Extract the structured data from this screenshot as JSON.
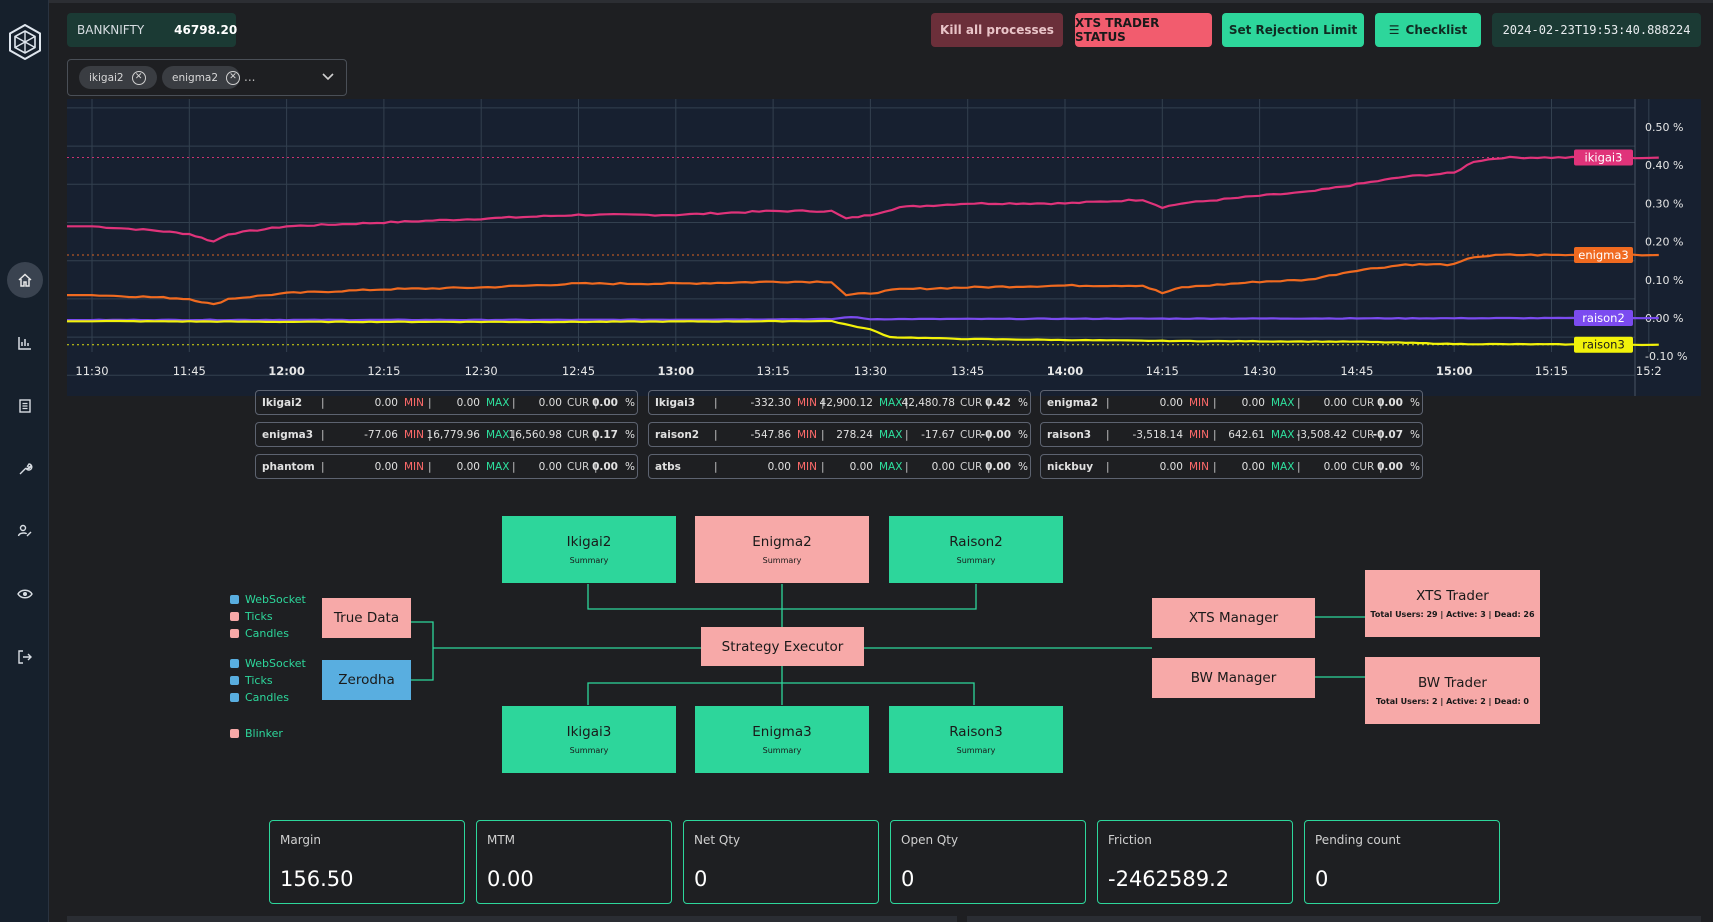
{
  "header": {
    "ticker_symbol": "BANKNIFTY",
    "ticker_value": "46798.20",
    "kill_label": "Kill all processes",
    "status_label": "XTS TRADER STATUS",
    "rejection_label": "Set Rejection Limit",
    "checklist_label": "Checklist",
    "timestamp": "2024-02-23T19:53:40.888224"
  },
  "filter": {
    "chips": [
      "ikigai2",
      "enigma2"
    ],
    "more": "..."
  },
  "chart_data": {
    "type": "line",
    "x": [
      "11:30",
      "11:45",
      "12:00",
      "12:15",
      "12:30",
      "12:45",
      "13:00",
      "13:15",
      "13:30",
      "13:45",
      "14:00",
      "14:15",
      "14:30",
      "14:45",
      "15:00",
      "15:15",
      "15:2"
    ],
    "x_bold": [
      "12:00",
      "13:00",
      "14:00",
      "15:00"
    ],
    "y_ticks": [
      "0.50 %",
      "0.40 %",
      "0.30 %",
      "0.20 %",
      "0.10 %",
      "0.00 %",
      "-0.10 %"
    ],
    "ylim": [
      -0.12,
      0.52
    ],
    "grid": true,
    "series": [
      {
        "name": "ikigai3",
        "color": "#e0337a",
        "end_label": "ikigai3",
        "points": [
          [
            0,
            0.24
          ],
          [
            0.6,
            0.23
          ],
          [
            1.0,
            0.22
          ],
          [
            1.25,
            0.2
          ],
          [
            1.4,
            0.22
          ],
          [
            2,
            0.24
          ],
          [
            3,
            0.25
          ],
          [
            4,
            0.26
          ],
          [
            5,
            0.27
          ],
          [
            6,
            0.27
          ],
          [
            7,
            0.28
          ],
          [
            7.6,
            0.28
          ],
          [
            7.75,
            0.26
          ],
          [
            8,
            0.27
          ],
          [
            8.3,
            0.29
          ],
          [
            9,
            0.3
          ],
          [
            10,
            0.3
          ],
          [
            10.8,
            0.31
          ],
          [
            11,
            0.29
          ],
          [
            11.2,
            0.3
          ],
          [
            12,
            0.32
          ],
          [
            12.5,
            0.33
          ],
          [
            13,
            0.35
          ],
          [
            13.5,
            0.37
          ],
          [
            14,
            0.38
          ],
          [
            14.2,
            0.41
          ],
          [
            14.5,
            0.42
          ],
          [
            15,
            0.42
          ],
          [
            16,
            0.42
          ]
        ]
      },
      {
        "name": "enigma3",
        "color": "#f06a20",
        "end_label": "enigma3",
        "points": [
          [
            0,
            0.06
          ],
          [
            0.6,
            0.055
          ],
          [
            1.0,
            0.05
          ],
          [
            1.25,
            0.035
          ],
          [
            1.4,
            0.05
          ],
          [
            2,
            0.065
          ],
          [
            3,
            0.075
          ],
          [
            4,
            0.08
          ],
          [
            5,
            0.09
          ],
          [
            6,
            0.09
          ],
          [
            7,
            0.095
          ],
          [
            7.6,
            0.095
          ],
          [
            7.75,
            0.06
          ],
          [
            8,
            0.065
          ],
          [
            8.3,
            0.075
          ],
          [
            9,
            0.08
          ],
          [
            10,
            0.085
          ],
          [
            10.8,
            0.085
          ],
          [
            11,
            0.065
          ],
          [
            11.2,
            0.08
          ],
          [
            12,
            0.095
          ],
          [
            12.5,
            0.1
          ],
          [
            13,
            0.125
          ],
          [
            13.5,
            0.14
          ],
          [
            14,
            0.14
          ],
          [
            14.2,
            0.16
          ],
          [
            14.5,
            0.165
          ],
          [
            15,
            0.165
          ],
          [
            16,
            0.165
          ]
        ]
      },
      {
        "name": "raison2",
        "color": "#7b4bf0",
        "end_label": "raison2",
        "points": [
          [
            0,
            -0.005
          ],
          [
            5,
            -0.005
          ],
          [
            7.6,
            -0.003
          ],
          [
            7.8,
            0.003
          ],
          [
            8,
            -0.003
          ],
          [
            10,
            -0.002
          ],
          [
            16,
            0.0
          ]
        ]
      },
      {
        "name": "raison3",
        "color": "#f2f20a",
        "end_label": "raison3",
        "points": [
          [
            0,
            -0.008
          ],
          [
            2,
            -0.01
          ],
          [
            5,
            -0.01
          ],
          [
            7.6,
            -0.008
          ],
          [
            7.8,
            -0.02
          ],
          [
            8,
            -0.03
          ],
          [
            8.2,
            -0.05
          ],
          [
            9,
            -0.055
          ],
          [
            11,
            -0.06
          ],
          [
            13,
            -0.062
          ],
          [
            14,
            -0.068
          ],
          [
            16,
            -0.07
          ]
        ]
      }
    ],
    "ref_lines": [
      {
        "y": 0.42,
        "color": "#e0337a"
      },
      {
        "y": 0.165,
        "color": "#f06a20"
      },
      {
        "y": -0.07,
        "color": "#f2f20a"
      }
    ]
  },
  "stats": [
    {
      "name": "Ikigai2",
      "min": "0.00",
      "max": "0.00",
      "cur": "0.00",
      "pct": "0.00"
    },
    {
      "name": "Ikigai3",
      "min": "-332.30",
      "max": "42,900.12",
      "cur": "42,480.78",
      "pct": "0.42"
    },
    {
      "name": "enigma2",
      "min": "0.00",
      "max": "0.00",
      "cur": "0.00",
      "pct": "0.00"
    },
    {
      "name": "enigma3",
      "min": "-77.06",
      "max": "16,779.96",
      "cur": "16,560.98",
      "pct": "0.17"
    },
    {
      "name": "raison2",
      "min": "-547.86",
      "max": "278.24",
      "cur": "-17.67",
      "pct": "-0.00"
    },
    {
      "name": "raison3",
      "min": "-3,518.14",
      "max": "642.61",
      "cur": "-3,508.42",
      "pct": "-0.07"
    },
    {
      "name": "phantom",
      "min": "0.00",
      "max": "0.00",
      "cur": "0.00",
      "pct": "0.00"
    },
    {
      "name": "atbs",
      "min": "0.00",
      "max": "0.00",
      "cur": "0.00",
      "pct": "0.00"
    },
    {
      "name": "nickbuy",
      "min": "0.00",
      "max": "0.00",
      "cur": "0.00",
      "pct": "0.00"
    }
  ],
  "stat_labels": {
    "sep": "|",
    "min": "MIN",
    "max": "MAX",
    "cur": "CUR",
    "pct": "%"
  },
  "diagram": {
    "ikigai2": {
      "title": "Ikigai2",
      "sub": "Summary"
    },
    "enigma2": {
      "title": "Enigma2",
      "sub": "Summary"
    },
    "raison2": {
      "title": "Raison2",
      "sub": "Summary"
    },
    "ikigai3": {
      "title": "Ikigai3",
      "sub": "Summary"
    },
    "enigma3": {
      "title": "Enigma3",
      "sub": "Summary"
    },
    "raison3": {
      "title": "Raison3",
      "sub": "Summary"
    },
    "true_data": "True Data",
    "zerodha": "Zerodha",
    "executor": "Strategy Executor",
    "xts_manager": "XTS Manager",
    "bw_manager": "BW Manager",
    "xts_trader": {
      "title": "XTS Trader",
      "sub": "Total Users: 29 | Active: 3 | Dead: 26"
    },
    "bw_trader": {
      "title": "BW Trader",
      "sub": "Total Users: 2 | Active: 2 | Dead: 0"
    }
  },
  "legend": [
    {
      "label": "WebSocket",
      "color": "#59aee0"
    },
    {
      "label": "Ticks",
      "color": "#f7a9a8"
    },
    {
      "label": "Candles",
      "color": "#f7a9a8"
    },
    {
      "label": "WebSocket",
      "color": "#59aee0"
    },
    {
      "label": "Ticks",
      "color": "#59aee0"
    },
    {
      "label": "Candles",
      "color": "#59aee0"
    },
    {
      "label": "Blinker",
      "color": "#f7a9a8"
    }
  ],
  "cards": [
    {
      "label": "Margin",
      "value": "156.50"
    },
    {
      "label": "MTM",
      "value": "0.00"
    },
    {
      "label": "Net Qty",
      "value": "0"
    },
    {
      "label": "Open Qty",
      "value": "0"
    },
    {
      "label": "Friction",
      "value": "-2462589.2"
    },
    {
      "label": "Pending count",
      "value": "0"
    }
  ],
  "sidebar_icons": [
    "logo-icon",
    "home-icon",
    "bar-chart-icon",
    "document-icon",
    "wrench-icon",
    "user-edit-icon",
    "eye-icon",
    "logout-icon"
  ]
}
